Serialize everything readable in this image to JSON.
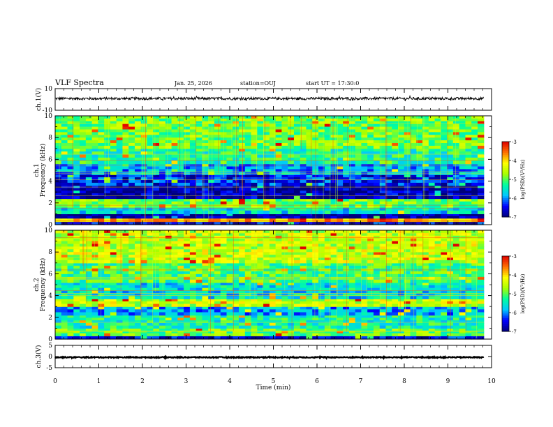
{
  "header": {
    "title": "VLF Spectra",
    "date": "Jan. 25, 2026",
    "station": "station=OUJ",
    "start_ut": "start UT =  17:30:0"
  },
  "chart_data": [
    {
      "type": "line",
      "name": "ch1-waveform",
      "ylabel": "ch.1(V)",
      "ylim": [
        -10,
        10
      ],
      "yticks": [
        "10",
        "-10"
      ],
      "xlim": [
        0,
        10
      ],
      "x_data_range": [
        0,
        9.82
      ],
      "mean": 0.8,
      "noise_amplitude": 1.2
    },
    {
      "type": "heatmap",
      "name": "ch1-spectrogram",
      "ylabel": "ch.1\nFrequency (kHz)",
      "ylim": [
        0,
        10
      ],
      "yticks": [
        "0",
        "2",
        "4",
        "6",
        "8",
        "10"
      ],
      "xlim": [
        0,
        10
      ],
      "x_data_range": [
        0,
        9.82
      ],
      "colorbar": {
        "label": "log(PSD)(V²/Hz)",
        "range": [
          -7,
          -3
        ],
        "ticks": [
          "-3",
          "-4",
          "-5",
          "-6",
          "-7"
        ]
      },
      "bands": [
        {
          "f0": 0.0,
          "f1": 0.3,
          "level": -6.6
        },
        {
          "f0": 0.3,
          "f1": 0.6,
          "level": -3.8
        },
        {
          "f0": 0.6,
          "f1": 1.0,
          "level": -6.9
        },
        {
          "f0": 1.0,
          "f1": 1.6,
          "level": -5.6
        },
        {
          "f0": 1.6,
          "f1": 2.4,
          "level": -4.9
        },
        {
          "f0": 2.4,
          "f1": 3.6,
          "level": -6.8
        },
        {
          "f0": 3.6,
          "f1": 4.6,
          "level": -6.4
        },
        {
          "f0": 4.6,
          "f1": 5.6,
          "level": -5.9
        },
        {
          "f0": 5.6,
          "f1": 7.0,
          "level": -5.3
        },
        {
          "f0": 7.0,
          "f1": 10.0,
          "level": -4.9
        }
      ]
    },
    {
      "type": "heatmap",
      "name": "ch2-spectrogram",
      "ylabel": "ch.2\nFrequency (kHz)",
      "ylim": [
        0,
        10
      ],
      "yticks": [
        "0",
        "2",
        "4",
        "6",
        "8",
        "10"
      ],
      "xlim": [
        0,
        10
      ],
      "x_data_range": [
        0,
        9.82
      ],
      "colorbar": {
        "label": "log(PSD)(V²/Hz)",
        "range": [
          -7,
          -3
        ],
        "ticks": [
          "-3",
          "-4",
          "-5",
          "-6",
          "-7"
        ]
      },
      "bands": [
        {
          "f0": 0.0,
          "f1": 0.3,
          "level": -6.6
        },
        {
          "f0": 0.3,
          "f1": 1.0,
          "level": -5.0
        },
        {
          "f0": 1.0,
          "f1": 2.2,
          "level": -5.4
        },
        {
          "f0": 2.2,
          "f1": 3.0,
          "level": -5.9
        },
        {
          "f0": 3.0,
          "f1": 3.7,
          "level": -4.5
        },
        {
          "f0": 3.7,
          "f1": 5.2,
          "level": -5.6
        },
        {
          "f0": 5.2,
          "f1": 7.0,
          "level": -5.1
        },
        {
          "f0": 7.0,
          "f1": 10.0,
          "level": -4.5
        }
      ]
    },
    {
      "type": "line",
      "name": "ch3-waveform",
      "ylabel": "ch.3(V)",
      "ylim": [
        -5,
        5
      ],
      "yticks": [
        "5",
        "0",
        "-5"
      ],
      "xlim": [
        0,
        10
      ],
      "x_data_range": [
        0,
        9.82
      ],
      "mean": -0.35,
      "noise_amplitude": 0.25
    }
  ],
  "x_axis": {
    "label": "Time (min)",
    "range": [
      0,
      10
    ],
    "ticks": [
      "0",
      "1",
      "2",
      "3",
      "4",
      "5",
      "6",
      "7",
      "8",
      "9",
      "10"
    ]
  },
  "colors": {
    "colormap": [
      "#00007a",
      "#0000ff",
      "#00c8ff",
      "#00ffa0",
      "#a8ff00",
      "#ffff00",
      "#ff7000",
      "#e00000"
    ],
    "trace": "#000000",
    "frame": "#000000"
  }
}
